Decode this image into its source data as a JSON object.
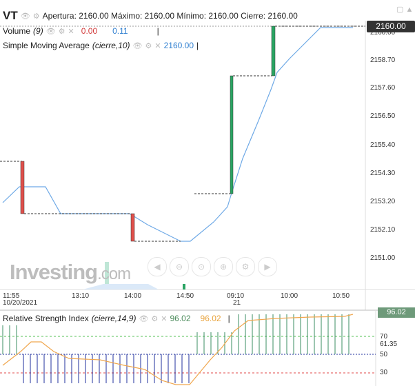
{
  "header": {
    "symbol": "VT",
    "ohlc_text": "Apertura: 2160.00 Máximo: 2160.00 Mínimo: 2160.00 Cierre: 2160.00"
  },
  "volume_legend": {
    "label": "Volume",
    "param": "(9)",
    "value1": "0.00",
    "value2": "0.11"
  },
  "sma_legend": {
    "label": "Simple Moving Average",
    "param": "(cierre,10)",
    "value": "2160.00"
  },
  "price_axis": [
    "2160.00",
    "2158.70",
    "2157.60",
    "2156.50",
    "2155.40",
    "2154.30",
    "2153.20",
    "2152.10",
    "2151.00"
  ],
  "current_price": "2160.00",
  "time_axis": [
    {
      "label": "11:55",
      "sub": "10/20/2021"
    },
    {
      "label": "13:10",
      "sub": ""
    },
    {
      "label": "14:00",
      "sub": ""
    },
    {
      "label": "14:50",
      "sub": ""
    },
    {
      "label": "09:10",
      "sub": "21"
    },
    {
      "label": "10:00",
      "sub": ""
    },
    {
      "label": "10:50",
      "sub": ""
    }
  ],
  "watermark": {
    "brand": "Investing",
    "suffix": ".com"
  },
  "rsi_legend": {
    "label": "Relative Strength Index",
    "param": "(cierre,14,9)",
    "value1": "96.02",
    "value2": "96.02"
  },
  "rsi_axis": [
    "96.02",
    "70",
    "61.35",
    "50",
    "30"
  ],
  "current_rsi": "96.02",
  "icons": {
    "eye": "eye-icon",
    "gear": "gear-icon",
    "close": "close-icon",
    "corner": [
      "square-icon",
      "warning-icon"
    ],
    "toolbar": [
      "scroll-left-icon",
      "zoom-out-icon",
      "zoom-reset-icon",
      "zoom-in-icon",
      "settings-circle-icon",
      "scroll-right-icon"
    ]
  },
  "colors": {
    "up": "#2aa463",
    "down": "#e0504b",
    "sma": "#6ea9e6",
    "rsi_line": "#f0a64d",
    "rsi_up": "#3a8c61",
    "rsi_down": "#1f2f9c",
    "level70": "#55c155",
    "level30": "#e04848"
  }
}
